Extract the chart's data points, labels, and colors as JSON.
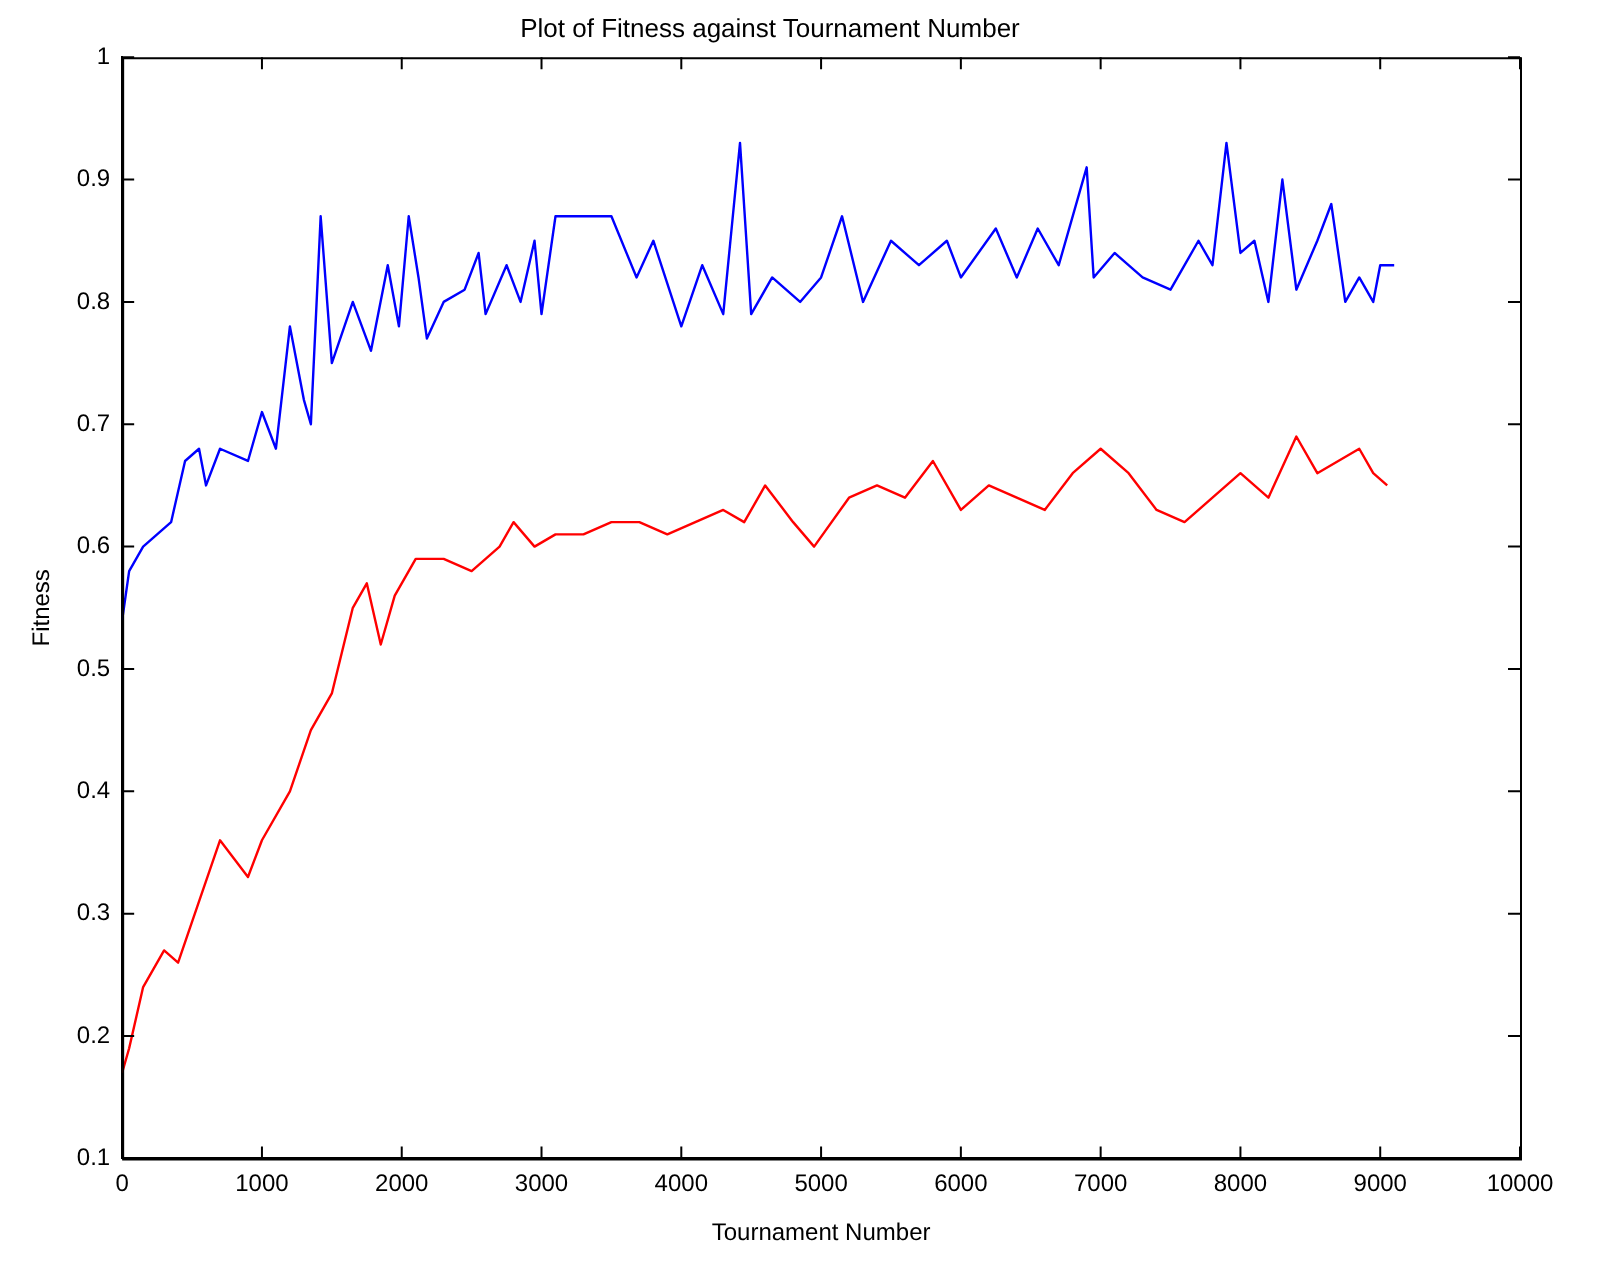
{
  "chart_data": {
    "type": "line",
    "title": "Plot of Fitness against Tournament Number",
    "xlabel": "Tournament Number",
    "ylabel": "Fitness",
    "xlim": [
      0,
      10000
    ],
    "xticks": [
      0,
      1000,
      2000,
      3000,
      4000,
      5000,
      6000,
      7000,
      8000,
      9000,
      10000
    ],
    "ylim": [
      0.1,
      1
    ],
    "yticks": [
      0.1,
      0.2,
      0.3,
      0.4,
      0.5,
      0.6,
      0.7,
      0.8,
      0.9,
      1
    ],
    "grid": false,
    "legend": false,
    "marker": "none",
    "line_style": "solid",
    "series": [
      {
        "color": "#0000ff",
        "x": [
          0,
          50,
          150,
          250,
          350,
          450,
          550,
          600,
          700,
          900,
          1000,
          1100,
          1200,
          1300,
          1350,
          1420,
          1500,
          1650,
          1780,
          1900,
          1980,
          2050,
          2120,
          2180,
          2300,
          2450,
          2550,
          2600,
          2750,
          2850,
          2950,
          3000,
          3100,
          3500,
          3680,
          3800,
          4000,
          4150,
          4300,
          4420,
          4500,
          4650,
          4850,
          5000,
          5150,
          5300,
          5500,
          5700,
          5900,
          6000,
          6250,
          6400,
          6550,
          6700,
          6900,
          6950,
          7100,
          7300,
          7500,
          7700,
          7800,
          7900,
          8000,
          8100,
          8200,
          8300,
          8400,
          8550,
          8650,
          8750,
          8850,
          8950,
          9000,
          9100
        ],
        "values": [
          0.54,
          0.58,
          0.6,
          0.61,
          0.62,
          0.67,
          0.68,
          0.65,
          0.68,
          0.67,
          0.71,
          0.68,
          0.78,
          0.72,
          0.7,
          0.87,
          0.75,
          0.8,
          0.76,
          0.83,
          0.78,
          0.87,
          0.82,
          0.77,
          0.8,
          0.81,
          0.84,
          0.79,
          0.83,
          0.8,
          0.85,
          0.79,
          0.87,
          0.87,
          0.82,
          0.85,
          0.78,
          0.83,
          0.79,
          0.93,
          0.79,
          0.82,
          0.8,
          0.82,
          0.87,
          0.8,
          0.85,
          0.83,
          0.85,
          0.82,
          0.86,
          0.82,
          0.86,
          0.83,
          0.91,
          0.82,
          0.84,
          0.82,
          0.81,
          0.85,
          0.83,
          0.93,
          0.84,
          0.85,
          0.8,
          0.9,
          0.81,
          0.85,
          0.88,
          0.8,
          0.82,
          0.8,
          0.83,
          0.83
        ]
      },
      {
        "color": "#ff0000",
        "x": [
          0,
          50,
          150,
          300,
          400,
          550,
          700,
          900,
          1000,
          1200,
          1350,
          1500,
          1650,
          1750,
          1850,
          1950,
          2100,
          2300,
          2500,
          2700,
          2800,
          2950,
          3100,
          3300,
          3500,
          3700,
          3900,
          4100,
          4300,
          4450,
          4600,
          4800,
          4950,
          5200,
          5400,
          5600,
          5800,
          6000,
          6200,
          6400,
          6600,
          6800,
          7000,
          7200,
          7400,
          7600,
          7800,
          8000,
          8200,
          8400,
          8550,
          8700,
          8850,
          8950,
          9050
        ],
        "values": [
          0.17,
          0.19,
          0.24,
          0.27,
          0.26,
          0.31,
          0.36,
          0.33,
          0.36,
          0.4,
          0.45,
          0.48,
          0.55,
          0.57,
          0.52,
          0.56,
          0.59,
          0.59,
          0.58,
          0.6,
          0.62,
          0.6,
          0.61,
          0.61,
          0.62,
          0.62,
          0.61,
          0.62,
          0.63,
          0.62,
          0.65,
          0.62,
          0.6,
          0.64,
          0.65,
          0.64,
          0.67,
          0.63,
          0.65,
          0.64,
          0.63,
          0.66,
          0.68,
          0.66,
          0.63,
          0.62,
          0.64,
          0.66,
          0.64,
          0.69,
          0.66,
          0.67,
          0.68,
          0.66,
          0.65
        ]
      }
    ]
  }
}
